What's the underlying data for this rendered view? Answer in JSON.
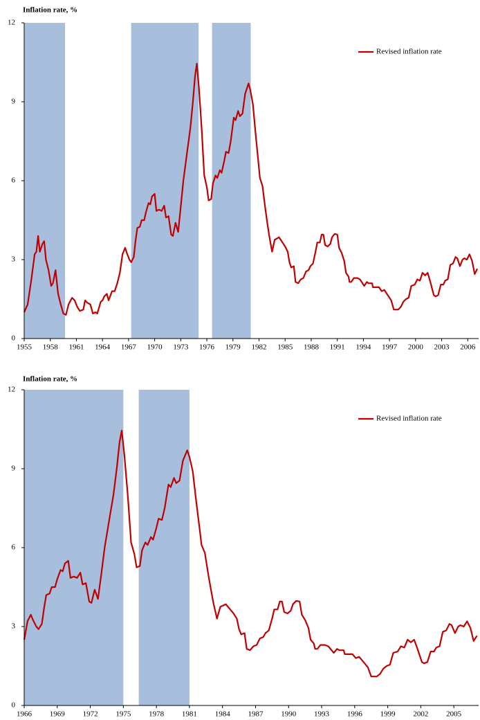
{
  "chart_data": [
    {
      "type": "line",
      "title": "Inflation rate, %",
      "legend": "upper right",
      "band_color": "#a7bfdd",
      "bands": [
        [
          1955.05,
          1959.7
        ],
        [
          1967.3,
          1975.05
        ],
        [
          1976.6,
          1981.05
        ]
      ],
      "xlim": [
        1955,
        2007.25
      ],
      "xticks": [
        1955,
        1958,
        1961,
        1964,
        1967,
        1970,
        1973,
        1976,
        1979,
        1982,
        1985,
        1988,
        1991,
        1994,
        1997,
        2000,
        2003,
        2006
      ],
      "ylim": [
        0,
        12
      ],
      "yticks": [
        0,
        3,
        6,
        9,
        12
      ],
      "x": [
        1955.0,
        1955.4,
        1955.8,
        1956.2,
        1956.4,
        1956.6,
        1956.8,
        1957.1,
        1957.3,
        1957.5,
        1957.8,
        1958.1,
        1958.3,
        1958.6,
        1958.9,
        1959.2,
        1959.5,
        1959.8,
        1960.1,
        1960.5,
        1960.8,
        1961.1,
        1961.4,
        1961.8,
        1962.0,
        1962.3,
        1962.6,
        1962.9,
        1963.2,
        1963.4,
        1963.8,
        1964.0,
        1964.2,
        1964.5,
        1964.7,
        1965.1,
        1965.4,
        1965.7,
        1966.0,
        1966.3,
        1966.6,
        1966.8,
        1967.1,
        1967.3,
        1967.6,
        1967.8,
        1968.0,
        1968.3,
        1968.5,
        1968.8,
        1969.0,
        1969.3,
        1969.5,
        1969.7,
        1970.0,
        1970.2,
        1970.5,
        1970.8,
        1971.1,
        1971.3,
        1971.6,
        1971.9,
        1972.1,
        1972.4,
        1972.7,
        1973.0,
        1973.3,
        1973.7,
        1974.1,
        1974.4,
        1974.65,
        1974.85,
        1975.1,
        1975.4,
        1975.7,
        1976.0,
        1976.2,
        1976.5,
        1976.7,
        1977.0,
        1977.2,
        1977.5,
        1977.7,
        1978.0,
        1978.2,
        1978.5,
        1978.75,
        1979.1,
        1979.3,
        1979.6,
        1979.8,
        1980.1,
        1980.4,
        1980.8,
        1981.0,
        1981.3,
        1981.6,
        1981.9,
        1982.1,
        1982.4,
        1982.7,
        1982.95,
        1983.2,
        1983.5,
        1983.8,
        1984.3,
        1984.7,
        1985.0,
        1985.3,
        1985.5,
        1985.7,
        1986.0,
        1986.2,
        1986.5,
        1986.8,
        1987.1,
        1987.4,
        1987.7,
        1987.9,
        1988.2,
        1988.5,
        1988.7,
        1989.0,
        1989.2,
        1989.4,
        1989.6,
        1989.9,
        1990.2,
        1990.4,
        1990.7,
        1991.0,
        1991.2,
        1991.5,
        1991.8,
        1992.0,
        1992.3,
        1992.4,
        1992.6,
        1992.9,
        1993.3,
        1993.6,
        1993.9,
        1994.1,
        1994.4,
        1994.6,
        1995.0,
        1995.1,
        1995.5,
        1995.8,
        1996.1,
        1996.4,
        1996.7,
        1996.9,
        1997.2,
        1997.5,
        1997.7,
        1998.0,
        1998.3,
        1998.6,
        1998.9,
        1999.2,
        1999.5,
        1999.9,
        2000.2,
        2000.5,
        2000.8,
        2001.1,
        2001.4,
        2001.7,
        2002.1,
        2002.3,
        2002.6,
        2002.9,
        2003.2,
        2003.4,
        2003.7,
        2004.0,
        2004.3,
        2004.6,
        2004.8,
        2005.1,
        2005.4,
        2005.6,
        2005.9,
        2006.2,
        2006.5,
        2006.8,
        2007.1
      ],
      "series": [
        {
          "name": "Revised inflation rate",
          "color": "#c00000",
          "values": [
            1.0,
            1.3,
            2.2,
            3.2,
            3.3,
            3.9,
            3.3,
            3.6,
            3.7,
            3.0,
            2.6,
            2.0,
            2.1,
            2.6,
            1.7,
            1.3,
            0.95,
            0.9,
            1.3,
            1.55,
            1.45,
            1.2,
            1.05,
            1.1,
            1.45,
            1.35,
            1.3,
            0.95,
            1.0,
            0.95,
            1.4,
            1.45,
            1.6,
            1.7,
            1.45,
            1.8,
            1.8,
            2.1,
            2.5,
            3.2,
            3.45,
            3.25,
            3.0,
            2.9,
            3.1,
            3.7,
            4.2,
            4.25,
            4.5,
            4.5,
            4.8,
            5.15,
            5.1,
            5.4,
            5.5,
            4.85,
            4.9,
            4.85,
            5.05,
            4.6,
            4.65,
            3.95,
            3.9,
            4.4,
            4.05,
            5.0,
            6.0,
            7.0,
            8.0,
            9.0,
            10.0,
            10.45,
            9.5,
            8.0,
            6.2,
            5.75,
            5.25,
            5.3,
            5.9,
            6.2,
            6.1,
            6.4,
            6.3,
            6.75,
            7.1,
            7.05,
            7.5,
            8.4,
            8.3,
            8.65,
            8.45,
            8.55,
            9.3,
            9.7,
            9.45,
            8.9,
            7.8,
            6.8,
            6.1,
            5.8,
            5.0,
            4.4,
            3.85,
            3.3,
            3.75,
            3.85,
            3.65,
            3.5,
            3.3,
            2.9,
            2.7,
            2.75,
            2.15,
            2.1,
            2.25,
            2.3,
            2.55,
            2.6,
            2.75,
            2.85,
            3.3,
            3.65,
            3.65,
            3.95,
            3.95,
            3.55,
            3.5,
            3.6,
            3.85,
            3.98,
            3.95,
            3.45,
            3.25,
            2.95,
            2.5,
            2.35,
            2.15,
            2.15,
            2.3,
            2.3,
            2.25,
            2.1,
            2.0,
            2.15,
            2.1,
            2.1,
            1.95,
            1.95,
            1.95,
            1.8,
            1.85,
            1.7,
            1.6,
            1.45,
            1.1,
            1.1,
            1.1,
            1.2,
            1.4,
            1.5,
            1.55,
            2.0,
            2.05,
            2.25,
            2.2,
            2.5,
            2.4,
            2.5,
            2.15,
            1.65,
            1.6,
            1.65,
            2.05,
            2.05,
            2.2,
            2.25,
            2.8,
            2.85,
            3.1,
            3.05,
            2.75,
            3.0,
            3.05,
            3.0,
            3.2,
            2.95,
            2.45,
            2.65
          ]
        }
      ]
    },
    {
      "type": "line",
      "title": "Inflation rate, %",
      "legend": "upper right",
      "band_color": "#a7bfdd",
      "bands": [
        [
          1966.0,
          1975.0
        ],
        [
          1976.4,
          1981.0
        ]
      ],
      "xlim": [
        1966,
        2007.25
      ],
      "xticks": [
        1966,
        1969,
        1972,
        1975,
        1978,
        1981,
        1984,
        1987,
        1990,
        1993,
        1996,
        1999,
        2002,
        2005
      ],
      "ylim": [
        0,
        12
      ],
      "yticks": [
        0,
        3,
        6,
        9,
        12
      ],
      "x": [
        1966.0,
        1966.3,
        1966.6,
        1966.8,
        1967.1,
        1967.3,
        1967.6,
        1967.8,
        1968.0,
        1968.3,
        1968.5,
        1968.8,
        1969.0,
        1969.3,
        1969.5,
        1969.7,
        1970.0,
        1970.2,
        1970.5,
        1970.8,
        1971.1,
        1971.3,
        1971.6,
        1971.9,
        1972.1,
        1972.4,
        1972.7,
        1973.0,
        1973.3,
        1973.7,
        1974.1,
        1974.4,
        1974.65,
        1974.85,
        1975.1,
        1975.4,
        1975.7,
        1976.0,
        1976.2,
        1976.5,
        1976.7,
        1977.0,
        1977.2,
        1977.5,
        1977.7,
        1978.0,
        1978.2,
        1978.5,
        1978.75,
        1979.1,
        1979.3,
        1979.6,
        1979.8,
        1980.1,
        1980.4,
        1980.8,
        1981.0,
        1981.3,
        1981.6,
        1981.9,
        1982.1,
        1982.4,
        1982.7,
        1982.95,
        1983.2,
        1983.5,
        1983.8,
        1984.3,
        1984.7,
        1985.0,
        1985.3,
        1985.5,
        1985.7,
        1986.0,
        1986.2,
        1986.5,
        1986.8,
        1987.1,
        1987.4,
        1987.7,
        1987.9,
        1988.2,
        1988.5,
        1988.7,
        1989.0,
        1989.2,
        1989.4,
        1989.6,
        1989.9,
        1990.2,
        1990.4,
        1990.7,
        1991.0,
        1991.2,
        1991.5,
        1991.8,
        1992.0,
        1992.3,
        1992.4,
        1992.6,
        1992.9,
        1993.3,
        1993.6,
        1993.9,
        1994.1,
        1994.4,
        1994.6,
        1995.0,
        1995.1,
        1995.5,
        1995.8,
        1996.1,
        1996.4,
        1996.7,
        1996.9,
        1997.2,
        1997.5,
        1997.7,
        1998.0,
        1998.3,
        1998.6,
        1998.9,
        1999.2,
        1999.5,
        1999.9,
        2000.2,
        2000.5,
        2000.8,
        2001.1,
        2001.4,
        2001.7,
        2002.1,
        2002.3,
        2002.6,
        2002.9,
        2003.2,
        2003.4,
        2003.7,
        2004.0,
        2004.3,
        2004.6,
        2004.8,
        2005.1,
        2005.4,
        2005.6,
        2005.9,
        2006.2,
        2006.5,
        2006.8,
        2007.1
      ],
      "series": [
        {
          "name": "Revised inflation rate",
          "color": "#c00000",
          "values": [
            2.5,
            3.2,
            3.45,
            3.25,
            3.0,
            2.9,
            3.1,
            3.7,
            4.2,
            4.25,
            4.5,
            4.5,
            4.8,
            5.15,
            5.1,
            5.4,
            5.5,
            4.85,
            4.9,
            4.85,
            5.05,
            4.6,
            4.65,
            3.95,
            3.9,
            4.4,
            4.05,
            5.0,
            6.0,
            7.0,
            8.0,
            9.0,
            10.0,
            10.45,
            9.5,
            8.0,
            6.2,
            5.75,
            5.25,
            5.3,
            5.9,
            6.2,
            6.1,
            6.4,
            6.3,
            6.75,
            7.1,
            7.05,
            7.5,
            8.4,
            8.3,
            8.65,
            8.45,
            8.55,
            9.3,
            9.7,
            9.45,
            8.9,
            7.8,
            6.8,
            6.1,
            5.8,
            5.0,
            4.4,
            3.85,
            3.3,
            3.75,
            3.85,
            3.65,
            3.5,
            3.3,
            2.9,
            2.7,
            2.75,
            2.15,
            2.1,
            2.25,
            2.3,
            2.55,
            2.6,
            2.75,
            2.85,
            3.3,
            3.65,
            3.65,
            3.95,
            3.95,
            3.55,
            3.5,
            3.6,
            3.85,
            3.98,
            3.95,
            3.45,
            3.25,
            2.95,
            2.5,
            2.35,
            2.15,
            2.15,
            2.3,
            2.3,
            2.25,
            2.1,
            2.0,
            2.15,
            2.1,
            2.1,
            1.95,
            1.95,
            1.95,
            1.8,
            1.85,
            1.7,
            1.6,
            1.45,
            1.1,
            1.1,
            1.1,
            1.2,
            1.4,
            1.5,
            1.55,
            2.0,
            2.05,
            2.25,
            2.2,
            2.5,
            2.4,
            2.5,
            2.15,
            1.65,
            1.6,
            1.65,
            2.05,
            2.05,
            2.2,
            2.25,
            2.8,
            2.85,
            3.1,
            3.05,
            2.75,
            3.0,
            3.05,
            3.0,
            3.2,
            2.95,
            2.45,
            2.65
          ]
        }
      ]
    }
  ]
}
